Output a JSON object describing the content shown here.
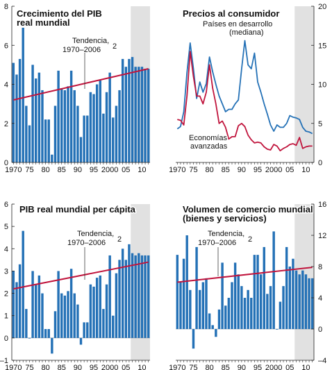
{
  "colors": {
    "bar": "#2471b6",
    "trend": "#c0143c",
    "line_dev": "#2471b6",
    "line_adv": "#c0143c",
    "shade": "#e1e1e1",
    "axis": "#222222"
  },
  "chart_data": [
    {
      "id": "gdp",
      "type": "bar",
      "title_lines": [
        "Crecimiento del PIB",
        "real mundial"
      ],
      "x": [
        1970,
        1971,
        1972,
        1973,
        1974,
        1975,
        1976,
        1977,
        1978,
        1979,
        1980,
        1981,
        1982,
        1983,
        1984,
        1985,
        1986,
        1987,
        1988,
        1989,
        1990,
        1991,
        1992,
        1993,
        1994,
        1995,
        1996,
        1997,
        1998,
        1999,
        2000,
        2001,
        2002,
        2003,
        2004,
        2005,
        2006,
        2007,
        2008,
        2009,
        2010,
        2011,
        2012
      ],
      "values": [
        5.1,
        4.5,
        5.3,
        6.9,
        2.9,
        1.9,
        5.0,
        4.3,
        4.6,
        3.7,
        2.2,
        2.2,
        0.4,
        2.9,
        4.7,
        3.8,
        3.7,
        3.9,
        4.7,
        3.7,
        2.9,
        1.3,
        2.4,
        2.4,
        3.6,
        3.5,
        4.0,
        4.2,
        2.5,
        3.6,
        4.6,
        2.3,
        2.9,
        3.7,
        5.3,
        4.9,
        5.3,
        5.4,
        4.9,
        4.9,
        4.9,
        4.8,
        4.8
      ],
      "trend": {
        "start": [
          1970,
          3.2
        ],
        "end": [
          2012,
          4.8
        ]
      },
      "trend_label": [
        "Tendencia,",
        "1970–2006"
      ],
      "trend_sup": "2",
      "shade_from": 2007,
      "ylim": [
        0,
        8
      ],
      "yticks": [
        "0",
        "2",
        "4",
        "6",
        "8"
      ],
      "y_side": "left",
      "xticks": [
        "1970",
        "75",
        "80",
        "85",
        "90",
        "95",
        "2000",
        "05",
        "10"
      ]
    },
    {
      "id": "cpi",
      "type": "line",
      "title_lines": [
        "Precios al consumidor"
      ],
      "x": [
        1970,
        1971,
        1972,
        1973,
        1974,
        1975,
        1976,
        1977,
        1978,
        1979,
        1980,
        1981,
        1982,
        1983,
        1984,
        1985,
        1986,
        1987,
        1988,
        1989,
        1990,
        1991,
        1992,
        1993,
        1994,
        1995,
        1996,
        1997,
        1998,
        1999,
        2000,
        2001,
        2002,
        2003,
        2004,
        2005,
        2006,
        2007,
        2008,
        2009,
        2010,
        2011,
        2012
      ],
      "series": [
        {
          "name_lines": [
            "Países en desarrollo",
            "(mediana)"
          ],
          "values": [
            4.3,
            4.6,
            6.5,
            11.5,
            15.3,
            12.0,
            8.2,
            10.3,
            9.0,
            10.1,
            13.5,
            11.6,
            10.0,
            8.5,
            7.5,
            6.5,
            6.8,
            6.8,
            7.5,
            8.0,
            12.0,
            15.6,
            12.5,
            12.0,
            14.0,
            10.3,
            9.0,
            7.5,
            6.2,
            4.8,
            4.0,
            4.8,
            4.5,
            4.5,
            5.0,
            6.0,
            5.8,
            5.7,
            5.5,
            4.5,
            4.0,
            3.9,
            3.7
          ]
        },
        {
          "name_lines": [
            "Economías",
            "avanzadas"
          ],
          "values": [
            5.5,
            5.4,
            4.8,
            8.5,
            14.2,
            11.0,
            8.5,
            8.5,
            7.5,
            9.0,
            12.5,
            9.5,
            7.5,
            5.0,
            5.3,
            4.5,
            3.0,
            3.3,
            3.3,
            4.7,
            5.0,
            4.6,
            3.5,
            2.9,
            2.5,
            2.6,
            2.5,
            2.0,
            1.7,
            1.6,
            2.3,
            2.1,
            1.5,
            1.8,
            2.0,
            2.3,
            2.4,
            2.2,
            3.2,
            1.8,
            2.0,
            2.1,
            2.1
          ]
        }
      ],
      "shade_from": 2007,
      "ylim": [
        0,
        20
      ],
      "yticks": [
        "0",
        "5",
        "10",
        "15",
        "20"
      ],
      "y_side": "right",
      "xticks": [
        "1970",
        "75",
        "80",
        "85",
        "90",
        "95",
        "2000",
        "05",
        "10"
      ]
    },
    {
      "id": "gdppc",
      "type": "bar",
      "title_lines": [
        "PIB real mundial per cápita"
      ],
      "x": [
        1970,
        1971,
        1972,
        1973,
        1974,
        1975,
        1976,
        1977,
        1978,
        1979,
        1980,
        1981,
        1982,
        1983,
        1984,
        1985,
        1986,
        1987,
        1988,
        1989,
        1990,
        1991,
        1992,
        1993,
        1994,
        1995,
        1996,
        1997,
        1998,
        1999,
        2000,
        2001,
        2002,
        2003,
        2004,
        2005,
        2006,
        2007,
        2008,
        2009,
        2010,
        2011,
        2012
      ],
      "values": [
        3.0,
        2.5,
        3.3,
        4.8,
        1.3,
        0.0,
        3.0,
        2.4,
        2.8,
        2.0,
        0.4,
        0.4,
        -0.7,
        1.2,
        3.0,
        2.0,
        1.9,
        2.1,
        3.1,
        2.0,
        1.5,
        -0.3,
        0.7,
        0.7,
        2.4,
        2.3,
        2.7,
        2.8,
        1.3,
        2.4,
        3.7,
        1.0,
        2.9,
        3.5,
        4.0,
        3.5,
        4.2,
        3.8,
        3.7,
        3.8,
        3.7,
        3.7,
        3.7
      ],
      "trend": {
        "start": [
          1970,
          2.2
        ],
        "end": [
          2012,
          3.4
        ]
      },
      "trend_label": [
        "Tendencia,",
        "1970–2006"
      ],
      "trend_sup": "2",
      "shade_from": 2007,
      "ylim": [
        -1,
        6
      ],
      "yticks": [
        "–1",
        "0",
        "1",
        "2",
        "3",
        "4",
        "5",
        "6"
      ],
      "y_side": "left",
      "xticks": [
        "1970",
        "75",
        "80",
        "85",
        "90",
        "95",
        "2000",
        "05",
        "10"
      ]
    },
    {
      "id": "trade",
      "type": "bar",
      "title_lines": [
        "Volumen de comercio mundial",
        "(bienes y servicios)"
      ],
      "x": [
        1970,
        1971,
        1972,
        1973,
        1974,
        1975,
        1976,
        1977,
        1978,
        1979,
        1980,
        1981,
        1982,
        1983,
        1984,
        1985,
        1986,
        1987,
        1988,
        1989,
        1990,
        1991,
        1992,
        1993,
        1994,
        1995,
        1996,
        1997,
        1998,
        1999,
        2000,
        2001,
        2002,
        2003,
        2004,
        2005,
        2006,
        2007,
        2008,
        2009,
        2010,
        2011,
        2012
      ],
      "values": [
        9.5,
        6.0,
        9.0,
        12.0,
        5.0,
        -2.5,
        10.5,
        5.0,
        6.0,
        6.5,
        2.0,
        0.5,
        -1.0,
        2.5,
        8.5,
        3.0,
        4.0,
        6.0,
        8.5,
        7.0,
        5.5,
        4.0,
        5.0,
        4.0,
        9.5,
        9.5,
        7.0,
        10.5,
        4.5,
        5.5,
        12.5,
        0.0,
        3.5,
        5.5,
        10.5,
        8.0,
        9.0,
        7.5,
        7.0,
        7.5,
        7.0,
        6.5,
        6.5
      ],
      "trend": {
        "start": [
          1970,
          6.0
        ],
        "end": [
          2012,
          7.9
        ]
      },
      "trend_label": [
        "Tendencia,",
        "1970–2006"
      ],
      "trend_sup": "2",
      "shade_from": 2007,
      "ylim": [
        -4,
        16
      ],
      "yticks": [
        "–4",
        "0",
        "4",
        "8",
        "12",
        "16"
      ],
      "y_side": "right",
      "xticks": [
        "1970",
        "75",
        "80",
        "85",
        "90",
        "95",
        "2000",
        "05",
        "10"
      ]
    }
  ]
}
